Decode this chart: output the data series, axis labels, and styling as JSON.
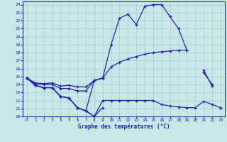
{
  "x": [
    0,
    1,
    2,
    3,
    4,
    5,
    6,
    7,
    8,
    9,
    10,
    11,
    12,
    13,
    14,
    15,
    16,
    17,
    18,
    19,
    20,
    21,
    22,
    23
  ],
  "line_high": [
    14.8,
    13.9,
    13.6,
    13.6,
    12.5,
    12.3,
    11.1,
    10.7,
    14.5,
    14.8,
    19.0,
    22.3,
    22.8,
    21.5,
    23.8,
    24.0,
    24.0,
    22.5,
    21.0,
    18.3,
    null,
    15.8,
    13.8,
    null
  ],
  "line_mid_upper": [
    14.8,
    14.2,
    14.1,
    14.2,
    13.8,
    13.9,
    13.7,
    13.7,
    14.5,
    14.8,
    16.2,
    16.8,
    17.2,
    17.5,
    17.8,
    18.0,
    18.1,
    18.2,
    18.3,
    18.3,
    null,
    15.5,
    14.0,
    null
  ],
  "line_mid_lower": [
    14.8,
    14.1,
    14.0,
    14.0,
    13.5,
    13.5,
    13.2,
    13.2,
    14.5,
    14.8,
    null,
    null,
    null,
    null,
    null,
    null,
    null,
    null,
    null,
    null,
    null,
    null,
    null,
    11.1
  ],
  "line_low": [
    14.8,
    13.9,
    13.6,
    13.6,
    12.5,
    12.3,
    11.1,
    10.7,
    10.0,
    11.1,
    null,
    null,
    null,
    null,
    null,
    null,
    null,
    null,
    null,
    null,
    null,
    null,
    null,
    null
  ],
  "line_bottom": [
    14.8,
    13.9,
    13.6,
    13.6,
    12.5,
    12.3,
    11.1,
    10.7,
    10.0,
    12.0,
    12.0,
    12.0,
    12.0,
    12.0,
    12.0,
    12.0,
    11.5,
    11.3,
    11.2,
    11.1,
    11.1,
    11.9,
    11.5,
    11.1
  ],
  "ylim": [
    10,
    24.4
  ],
  "xlim": [
    -0.5,
    23.5
  ],
  "yticks": [
    10,
    11,
    12,
    13,
    14,
    15,
    16,
    17,
    18,
    19,
    20,
    21,
    22,
    23,
    24
  ],
  "xticks": [
    0,
    1,
    2,
    3,
    4,
    5,
    6,
    7,
    8,
    9,
    10,
    11,
    12,
    13,
    14,
    15,
    16,
    17,
    18,
    19,
    20,
    21,
    22,
    23
  ],
  "xlabel": "Graphe des températures (°C)",
  "line_color": "#2222aa",
  "bg_color": "#c8e8e8",
  "grid_color": "#aacccc",
  "label_color": "#2222aa",
  "spine_color": "#2222aa"
}
